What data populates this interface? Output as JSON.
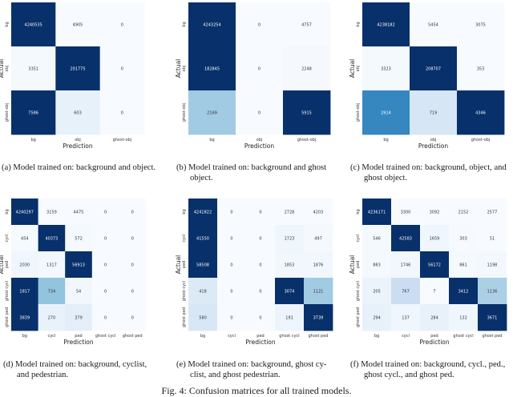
{
  "figure_caption": "Fig. 4: Confusion matrices for all trained models.",
  "chart_data": [
    {
      "type": "heatmap",
      "subcaption": "(a) Model trained on: background and object.",
      "xlabel": "Prediction",
      "ylabel": "Actual",
      "x_ticks": [
        "bg",
        "obj",
        "ghost-obj"
      ],
      "y_ticks": [
        "bg",
        "obj",
        "ghost-obj"
      ],
      "values": [
        [
          "4240535",
          "4905",
          "0"
        ],
        [
          "3351",
          "201775",
          "0"
        ],
        [
          "7586",
          "603",
          "0"
        ]
      ]
    },
    {
      "type": "heatmap",
      "subcaption": "(b) Model trained on: background and ghost object.",
      "xlabel": "Prediction",
      "ylabel": "Actual",
      "x_ticks": [
        "bg",
        "obj",
        "ghost-obj"
      ],
      "y_ticks": [
        "bg",
        "obj",
        "ghost-obj"
      ],
      "values": [
        [
          "4243254",
          "0",
          "4757"
        ],
        [
          "182845",
          "0",
          "2248"
        ],
        [
          "2169",
          "0",
          "5915"
        ]
      ]
    },
    {
      "type": "heatmap",
      "subcaption": "(c) Model trained on: background, object, and ghost object.",
      "xlabel": "Prediction",
      "ylabel": "Actual",
      "x_ticks": [
        "bg",
        "obj",
        "ghost-obj"
      ],
      "y_ticks": [
        "bg",
        "obj",
        "ghost-obj"
      ],
      "values": [
        [
          "4238182",
          "5454",
          "3075"
        ],
        [
          "3323",
          "208707",
          "353"
        ],
        [
          "2914",
          "719",
          "4346"
        ]
      ]
    },
    {
      "type": "heatmap",
      "subcaption": "(d) Model trained on: background, cyclist, and pedestrian.",
      "xlabel": "Prediction",
      "ylabel": "Actual",
      "x_ticks": [
        "bg",
        "cycl",
        "ped",
        "ghost cycl",
        "ghost ped"
      ],
      "y_ticks": [
        "bg",
        "cycl",
        "ped",
        "ghost cycl",
        "ghost ped"
      ],
      "values": [
        [
          "4240297",
          "3159",
          "4475",
          "0",
          "0"
        ],
        [
          "454",
          "40373",
          "572",
          "0",
          "0"
        ],
        [
          "2030",
          "1317",
          "56913",
          "0",
          "0"
        ],
        [
          "1817",
          "734",
          "54",
          "0",
          "0"
        ],
        [
          "3839",
          "270",
          "379",
          "0",
          "0"
        ]
      ]
    },
    {
      "type": "heatmap",
      "subcaption": "(e) Model trained on: background, ghost cyclist, and ghost pedestrian.",
      "xlabel": "Prediction",
      "ylabel": "Actual",
      "x_ticks": [
        "bg",
        "cycl",
        "ped",
        "ghost cycl",
        "ghost ped"
      ],
      "y_ticks": [
        "bg",
        "cycl",
        "ped",
        "ghost cycl",
        "ghost ped"
      ],
      "values": [
        [
          "4241822",
          "0",
          "0",
          "2728",
          "4203"
        ],
        [
          "41550",
          "0",
          "0",
          "1723",
          "497"
        ],
        [
          "58508",
          "0",
          "0",
          "1853",
          "1876"
        ],
        [
          "418",
          "0",
          "0",
          "3074",
          "1121"
        ],
        [
          "580",
          "0",
          "0",
          "191",
          "3739"
        ]
      ]
    },
    {
      "type": "heatmap",
      "subcaption": "(f) Model trained on: background, cycl., ped., ghost cycl., and ghost ped.",
      "xlabel": "Prediction",
      "ylabel": "Actual",
      "x_ticks": [
        "bg",
        "cycl",
        "ped",
        "ghost cycl",
        "ghost ped"
      ],
      "y_ticks": [
        "bg",
        "cycl",
        "ped",
        "ghost cycl",
        "ghost ped"
      ],
      "values": [
        [
          "4236171",
          "3300",
          "3092",
          "2152",
          "2577"
        ],
        [
          "546",
          "42583",
          "1659",
          "303",
          "51"
        ],
        [
          "883",
          "1746",
          "56172",
          "861",
          "1198"
        ],
        [
          "205",
          "767",
          "7",
          "3412",
          "1136"
        ],
        [
          "294",
          "137",
          "284",
          "132",
          "3671"
        ]
      ]
    }
  ],
  "captions": [
    [
      "(a) Model trained on: background and object."
    ],
    [
      "(b) Model trained on: background and ghost",
      "object."
    ],
    [
      "(c) Model trained on: background, object, and",
      "ghost object."
    ],
    [
      "(d) Model trained on: background, cyclist,",
      "and pedestrian."
    ],
    [
      "(e) Model trained on: background, ghost cy-",
      "clist, and ghost pedestrian."
    ],
    [
      "(f) Model trained on: background, cycl., ped.,",
      "ghost cycl., and ghost ped."
    ]
  ]
}
